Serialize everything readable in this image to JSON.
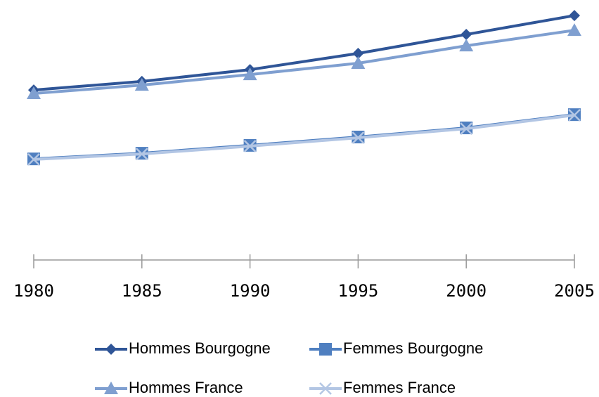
{
  "chart_data": {
    "type": "line",
    "categories": [
      "1980",
      "1985",
      "1990",
      "1995",
      "2000",
      "2005"
    ],
    "series": [
      {
        "name": "Hommes Bourgogne",
        "color": "#2f5597",
        "marker": "diamond",
        "values": [
          69.1,
          72.6,
          77.4,
          84.0,
          91.7,
          99.4
        ]
      },
      {
        "name": "Femmes Bourgogne",
        "color": "#4f7fc0",
        "marker": "square",
        "values": [
          41.1,
          43.4,
          46.6,
          50.0,
          53.7,
          59.1
        ]
      },
      {
        "name": "Hommes France",
        "color": "#7f9fd0",
        "marker": "triangle",
        "values": [
          67.7,
          71.1,
          75.4,
          80.0,
          87.1,
          93.4
        ]
      },
      {
        "name": "Femmes France",
        "color": "#b3c6e4",
        "marker": "x",
        "values": [
          40.9,
          43.1,
          46.3,
          49.7,
          53.4,
          58.9
        ]
      }
    ],
    "ylim": [
      0,
      100
    ],
    "grid": false
  }
}
